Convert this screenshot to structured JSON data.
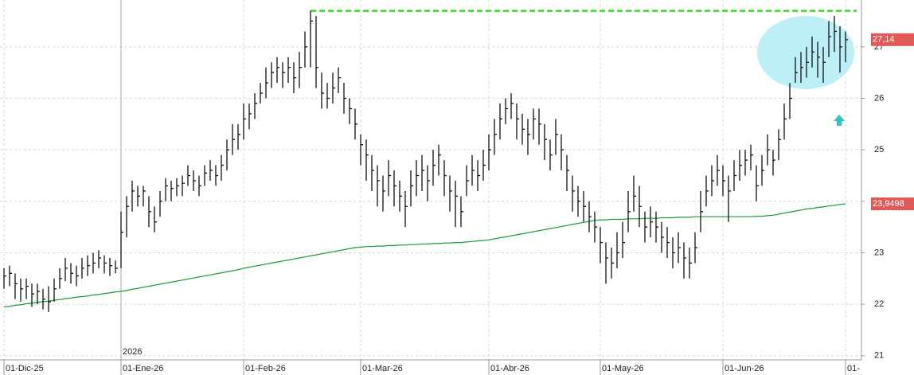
{
  "chart_data": {
    "type": "ohlc",
    "categories": [
      "01-Dic-25",
      null,
      null,
      null,
      null,
      null,
      null,
      null,
      null,
      null,
      null,
      null,
      null,
      null,
      null,
      null,
      null,
      null,
      null,
      null,
      null,
      "01-Ene-26",
      null,
      null,
      null,
      null,
      null,
      null,
      null,
      null,
      null,
      null,
      null,
      null,
      null,
      null,
      null,
      null,
      null,
      null,
      null,
      null,
      null,
      "01-Feb-26",
      null,
      null,
      null,
      null,
      null,
      null,
      null,
      null,
      null,
      null,
      null,
      null,
      null,
      null,
      null,
      null,
      null,
      null,
      null,
      null,
      "01-Mar-26",
      null,
      null,
      null,
      null,
      null,
      null,
      null,
      null,
      null,
      null,
      null,
      null,
      null,
      null,
      null,
      null,
      null,
      null,
      null,
      null,
      null,
      null,
      "01-Abr-26",
      null,
      null,
      null,
      null,
      null,
      null,
      null,
      null,
      null,
      null,
      null,
      null,
      null,
      null,
      null,
      null,
      null,
      null,
      null,
      "01-May-26",
      null,
      null,
      null,
      null,
      null,
      null,
      null,
      null,
      null,
      null,
      null,
      null,
      null,
      null,
      null,
      null,
      null,
      null,
      null,
      null,
      null,
      "01-Jun-26",
      null,
      null,
      null,
      null,
      null,
      null,
      null,
      null,
      null,
      null,
      null,
      null,
      null,
      null,
      null,
      null,
      null,
      null,
      null,
      null,
      null,
      "01-"
    ],
    "year_label": "2026",
    "year_index": 21,
    "high": [
      22.7,
      22.75,
      22.6,
      22.5,
      22.5,
      22.4,
      22.4,
      22.3,
      22.35,
      22.5,
      22.7,
      22.9,
      22.8,
      22.75,
      22.9,
      22.95,
      23.0,
      23.05,
      22.95,
      22.9,
      22.85,
      23.8,
      24.1,
      24.4,
      24.3,
      24.3,
      24.1,
      23.9,
      24.2,
      24.45,
      24.4,
      24.45,
      24.5,
      24.7,
      24.6,
      24.5,
      24.7,
      24.8,
      24.7,
      24.9,
      25.2,
      25.5,
      25.5,
      25.9,
      25.9,
      26.1,
      26.3,
      26.6,
      26.7,
      26.8,
      26.7,
      26.8,
      26.7,
      26.9,
      27.3,
      27.7,
      27.6,
      26.5,
      26.3,
      26.5,
      26.6,
      26.3,
      26.0,
      25.8,
      25.3,
      25.2,
      24.9,
      24.7,
      24.5,
      24.8,
      24.6,
      24.4,
      24.2,
      24.6,
      24.8,
      24.9,
      24.7,
      25.0,
      25.1,
      24.8,
      24.5,
      24.4,
      24.1,
      24.7,
      24.9,
      24.8,
      25.0,
      25.3,
      25.6,
      25.9,
      26.0,
      26.1,
      25.9,
      25.7,
      25.6,
      25.8,
      25.8,
      25.5,
      25.2,
      25.6,
      25.3,
      24.9,
      24.5,
      24.3,
      24.2,
      24.0,
      23.8,
      23.5,
      23.2,
      23.1,
      23.4,
      23.6,
      24.2,
      24.5,
      24.3,
      23.8,
      23.9,
      23.8,
      23.6,
      23.5,
      23.3,
      23.4,
      23.2,
      23.1,
      23.4,
      24.2,
      24.5,
      24.7,
      24.9,
      24.7,
      24.5,
      24.8,
      25.0,
      25.0,
      25.1,
      24.7,
      24.9,
      25.3,
      25.0,
      25.4,
      25.9,
      26.3,
      26.8,
      26.9,
      27.0,
      27.2,
      27.1,
      27.0,
      27.5,
      27.6,
      27.4,
      27.3
    ],
    "low": [
      22.3,
      22.35,
      22.1,
      22.05,
      22.1,
      21.95,
      22.0,
      21.9,
      21.85,
      22.05,
      22.3,
      22.45,
      22.4,
      22.35,
      22.5,
      22.55,
      22.6,
      22.7,
      22.6,
      22.55,
      22.6,
      22.7,
      23.3,
      23.8,
      23.9,
      23.9,
      23.5,
      23.4,
      23.7,
      24.0,
      24.0,
      24.1,
      24.1,
      24.3,
      24.2,
      24.1,
      24.3,
      24.4,
      24.3,
      24.4,
      24.6,
      24.9,
      25.0,
      25.2,
      25.4,
      25.6,
      25.9,
      26.0,
      26.2,
      26.3,
      26.2,
      26.3,
      26.1,
      26.2,
      26.6,
      26.6,
      26.2,
      25.8,
      25.8,
      25.9,
      26.1,
      25.7,
      25.5,
      25.2,
      24.7,
      24.4,
      24.2,
      23.9,
      23.8,
      24.1,
      23.9,
      23.8,
      23.5,
      23.9,
      24.1,
      24.2,
      24.0,
      24.3,
      24.5,
      24.1,
      23.8,
      23.5,
      23.5,
      24.1,
      24.3,
      24.2,
      24.4,
      24.6,
      24.9,
      25.2,
      25.5,
      25.6,
      25.2,
      25.1,
      24.9,
      25.2,
      25.1,
      24.8,
      24.6,
      24.9,
      24.6,
      24.2,
      23.8,
      23.7,
      23.6,
      23.4,
      23.2,
      22.8,
      22.4,
      22.5,
      22.7,
      22.9,
      23.4,
      23.8,
      23.5,
      23.2,
      23.3,
      23.2,
      23.0,
      22.9,
      22.7,
      22.8,
      22.5,
      22.5,
      22.8,
      23.4,
      23.9,
      24.1,
      24.3,
      24.1,
      23.6,
      24.2,
      24.4,
      24.5,
      24.6,
      24.0,
      24.3,
      24.7,
      24.5,
      24.8,
      25.2,
      25.6,
      26.3,
      26.3,
      26.4,
      26.6,
      26.4,
      26.3,
      26.8,
      26.9,
      26.5,
      26.7
    ],
    "close": [
      22.55,
      22.6,
      22.4,
      22.3,
      22.35,
      22.2,
      22.25,
      22.1,
      22.05,
      22.3,
      22.5,
      22.7,
      22.6,
      22.55,
      22.7,
      22.75,
      22.8,
      22.9,
      22.8,
      22.75,
      22.7,
      23.4,
      23.9,
      24.2,
      24.1,
      24.2,
      23.8,
      23.6,
      24.0,
      24.3,
      24.25,
      24.3,
      24.35,
      24.5,
      24.4,
      24.3,
      24.55,
      24.6,
      24.5,
      24.7,
      25.0,
      25.2,
      25.3,
      25.6,
      25.7,
      25.9,
      26.1,
      26.3,
      26.5,
      26.6,
      26.5,
      26.6,
      26.4,
      26.6,
      27.0,
      27.5,
      26.6,
      26.1,
      26.0,
      26.2,
      26.4,
      26.0,
      25.8,
      25.5,
      25.1,
      24.9,
      24.6,
      24.4,
      24.2,
      24.5,
      24.3,
      24.1,
      23.9,
      24.3,
      24.5,
      24.6,
      24.4,
      24.7,
      24.9,
      24.5,
      24.2,
      24.1,
      23.8,
      24.4,
      24.6,
      24.5,
      24.7,
      25.0,
      25.3,
      25.6,
      25.8,
      25.9,
      25.6,
      25.4,
      25.3,
      25.6,
      25.5,
      25.2,
      24.9,
      25.3,
      25.0,
      24.6,
      24.2,
      24.0,
      23.9,
      23.7,
      23.5,
      23.2,
      22.9,
      22.8,
      23.0,
      23.2,
      23.8,
      24.1,
      23.9,
      23.5,
      23.6,
      23.5,
      23.3,
      23.2,
      23.0,
      23.1,
      22.9,
      22.8,
      23.1,
      23.8,
      24.2,
      24.4,
      24.6,
      24.4,
      24.2,
      24.5,
      24.7,
      24.8,
      24.9,
      24.3,
      24.6,
      25.0,
      24.8,
      25.2,
      25.6,
      26.0,
      26.5,
      26.6,
      26.7,
      26.9,
      26.8,
      26.7,
      27.2,
      27.3,
      27.0,
      27.14
    ],
    "bar_color": "#111111",
    "close_label": "27,14",
    "ma_values": [
      21.95,
      21.96,
      21.98,
      21.99,
      22.01,
      22.02,
      22.04,
      22.05,
      22.06,
      22.08,
      22.09,
      22.11,
      22.12,
      22.14,
      22.15,
      22.16,
      22.18,
      22.19,
      22.21,
      22.22,
      22.24,
      22.25,
      22.27,
      22.29,
      22.31,
      22.33,
      22.35,
      22.37,
      22.39,
      22.41,
      22.43,
      22.45,
      22.47,
      22.49,
      22.51,
      22.53,
      22.55,
      22.57,
      22.59,
      22.61,
      22.63,
      22.65,
      22.67,
      22.7,
      22.72,
      22.74,
      22.76,
      22.78,
      22.8,
      22.82,
      22.84,
      22.86,
      22.88,
      22.9,
      22.92,
      22.94,
      22.96,
      22.98,
      23.0,
      23.02,
      23.04,
      23.06,
      23.08,
      23.1,
      23.11,
      23.12,
      23.12,
      23.13,
      23.13,
      23.14,
      23.14,
      23.15,
      23.15,
      23.16,
      23.16,
      23.17,
      23.17,
      23.18,
      23.18,
      23.19,
      23.19,
      23.2,
      23.2,
      23.21,
      23.22,
      23.23,
      23.24,
      23.25,
      23.27,
      23.29,
      23.31,
      23.33,
      23.35,
      23.37,
      23.39,
      23.41,
      23.43,
      23.45,
      23.47,
      23.49,
      23.51,
      23.53,
      23.55,
      23.57,
      23.59,
      23.61,
      23.63,
      23.64,
      23.64,
      23.65,
      23.65,
      23.65,
      23.66,
      23.66,
      23.66,
      23.67,
      23.67,
      23.67,
      23.68,
      23.68,
      23.68,
      23.69,
      23.69,
      23.69,
      23.7,
      23.7,
      23.7,
      23.7,
      23.7,
      23.7,
      23.7,
      23.7,
      23.7,
      23.7,
      23.7,
      23.71,
      23.71,
      23.72,
      23.73,
      23.75,
      23.77,
      23.79,
      23.81,
      23.83,
      23.85,
      23.86,
      23.88,
      23.89,
      23.91,
      23.92,
      23.94,
      23.9498
    ],
    "ma_color": "#1a9a3a",
    "ma_label": "23,9498",
    "label_color": "#e05a5a",
    "resistance": {
      "value": 27.7,
      "color": "#33dd22",
      "dashed": true
    },
    "ylim": [
      20.92,
      27.91
    ],
    "yticks": [
      21,
      22,
      23,
      24,
      25,
      26,
      27
    ],
    "grid": true
  }
}
